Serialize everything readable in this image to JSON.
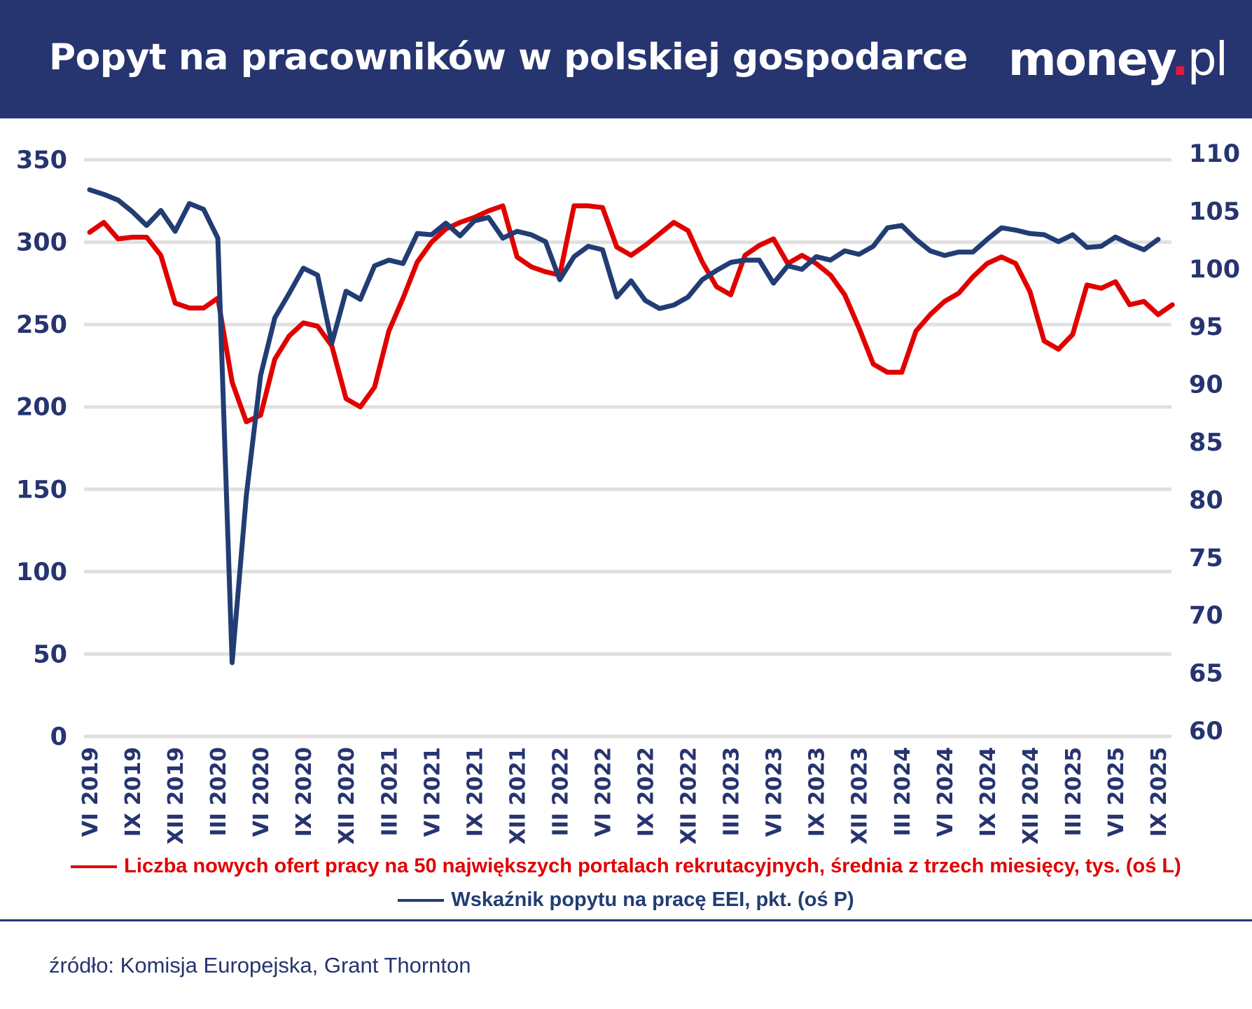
{
  "header": {
    "title": "Popyt na pracowników w polskiej gospodarce",
    "logo": "money.pl"
  },
  "colors": {
    "header_bg": "#263470",
    "red_series": "#e10000",
    "blue_series": "#213d73",
    "grid": "#e0e0e0",
    "axis_text": "#263470"
  },
  "source": "źródło: Komisja Europejska, Grant Thornton",
  "chart_data": {
    "type": "line",
    "grid": true,
    "legend_placement": "bottom",
    "left_axis": {
      "ticks": [
        "0",
        "50",
        "100",
        "150",
        "200",
        "250",
        "300",
        "350"
      ],
      "ylim": [
        0,
        350
      ]
    },
    "right_axis": {
      "ticks": [
        "60",
        "65",
        "70",
        "75",
        "80",
        "85",
        "90",
        "95",
        "100",
        "105",
        "110"
      ],
      "ylim": [
        60,
        110
      ]
    },
    "x_tick_labels": [
      "VI 2019",
      "IX 2019",
      "XII 2019",
      "III 2020",
      "VI 2020",
      "IX 2020",
      "XII 2020",
      "III 2021",
      "VI 2021",
      "IX 2021",
      "XII 2021",
      "III 2022",
      "VI 2022",
      "IX 2022",
      "XII 2022",
      "III 2023",
      "VI 2023",
      "IX 2023",
      "XII 2023",
      "III 2024",
      "VI 2024",
      "IX 2024",
      "XII 2024",
      "III 2025",
      "VI 2025",
      "IX 2025"
    ],
    "x_start": "VI 2019",
    "x_frequency": "monthly",
    "series": [
      {
        "name": "Liczba nowych ofert pracy na 50 największych portalach rekrutacyjnych, średnia z trzech miesięcy, tys. (oś L)",
        "axis": "left",
        "color": "#e10000",
        "values": [
          306,
          312,
          302,
          303,
          303,
          292,
          263,
          260,
          260,
          266,
          215,
          191,
          195,
          229,
          243,
          251,
          249,
          237,
          205,
          200,
          212,
          246,
          266,
          288,
          300,
          308,
          312,
          315,
          319,
          322,
          291,
          285,
          282,
          280,
          322,
          322,
          321,
          297,
          292,
          298,
          305,
          312,
          307,
          288,
          273,
          268,
          292,
          298,
          302,
          287,
          292,
          287,
          280,
          268,
          248,
          226,
          221,
          221,
          246,
          256,
          264,
          269,
          279,
          287,
          291,
          287,
          270,
          240,
          235,
          244,
          274,
          272,
          276,
          262,
          264,
          256,
          262
        ]
      },
      {
        "name": "Wskaźnik popytu na pracę EEI, pkt. (oś P)",
        "axis": "right",
        "color": "#213d73",
        "values": [
          107.4,
          107.0,
          106.5,
          105.5,
          104.3,
          105.6,
          103.8,
          106.2,
          105.7,
          103.2,
          66.4,
          80.9,
          91.3,
          96.3,
          98.4,
          100.6,
          100.0,
          94.1,
          98.6,
          97.9,
          100.8,
          101.3,
          101.0,
          103.6,
          103.5,
          104.5,
          103.4,
          104.7,
          105.0,
          103.2,
          103.8,
          103.5,
          102.9,
          99.6,
          101.6,
          102.5,
          102.2,
          98.1,
          99.5,
          97.8,
          97.1,
          97.4,
          98.1,
          99.6,
          100.4,
          101.1,
          101.3,
          101.3,
          99.3,
          100.8,
          100.5,
          101.6,
          101.3,
          102.1,
          101.8,
          102.5,
          104.1,
          104.3,
          103.1,
          102.1,
          101.7,
          102.0,
          102.0,
          103.1,
          104.1,
          103.9,
          103.6,
          103.5,
          102.9,
          103.5,
          102.4,
          102.5,
          103.3,
          102.7,
          102.2,
          103.1
        ]
      }
    ]
  }
}
